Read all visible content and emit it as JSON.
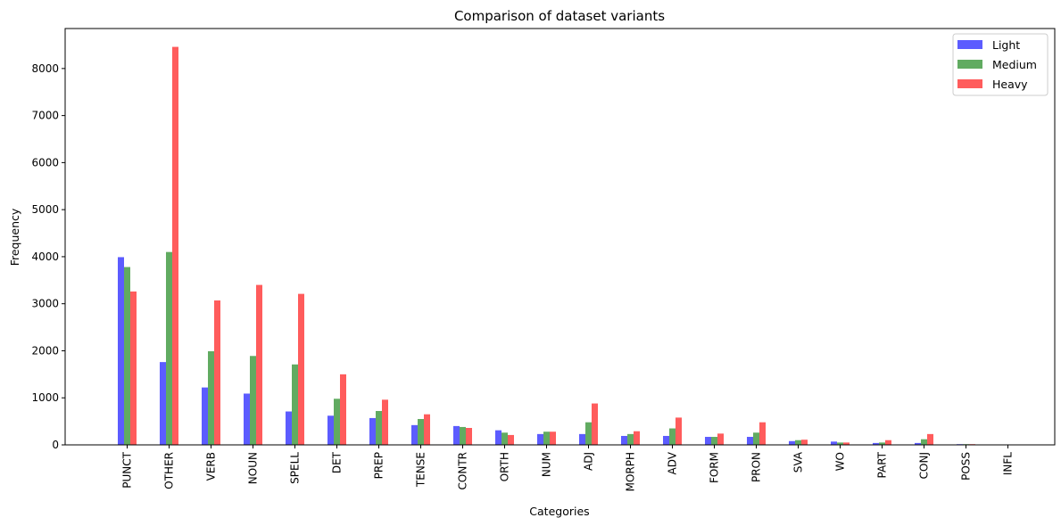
{
  "chart_data": {
    "type": "bar",
    "title": "Comparison of dataset variants",
    "xlabel": "Categories",
    "ylabel": "Frequency",
    "ylim": [
      0,
      8850
    ],
    "yticks": [
      0,
      1000,
      2000,
      3000,
      4000,
      5000,
      6000,
      7000,
      8000
    ],
    "legend_position": "top-right",
    "grid": false,
    "categories": [
      "PUNCT",
      "OTHER",
      "VERB",
      "NOUN",
      "SPELL",
      "DET",
      "PREP",
      "TENSE",
      "CONTR",
      "ORTH",
      "NUM",
      "ADJ",
      "MORPH",
      "ADV",
      "FORM",
      "PRON",
      "SVA",
      "WO",
      "PART",
      "CONJ",
      "POSS",
      "INFL"
    ],
    "series": [
      {
        "name": "Light",
        "color": "#3333ff",
        "values": [
          3990,
          1760,
          1220,
          1090,
          710,
          620,
          570,
          420,
          400,
          310,
          230,
          230,
          190,
          190,
          170,
          170,
          80,
          70,
          40,
          40,
          15,
          5
        ]
      },
      {
        "name": "Medium",
        "color": "#3a963a",
        "values": [
          3780,
          4100,
          1990,
          1890,
          1710,
          980,
          720,
          550,
          380,
          260,
          280,
          480,
          230,
          350,
          170,
          260,
          100,
          50,
          50,
          120,
          15,
          5
        ]
      },
      {
        "name": "Heavy",
        "color": "#ff3333",
        "values": [
          3260,
          8460,
          3070,
          3400,
          3210,
          1500,
          960,
          650,
          360,
          210,
          280,
          880,
          290,
          580,
          240,
          480,
          110,
          50,
          100,
          230,
          15,
          5
        ]
      }
    ]
  }
}
